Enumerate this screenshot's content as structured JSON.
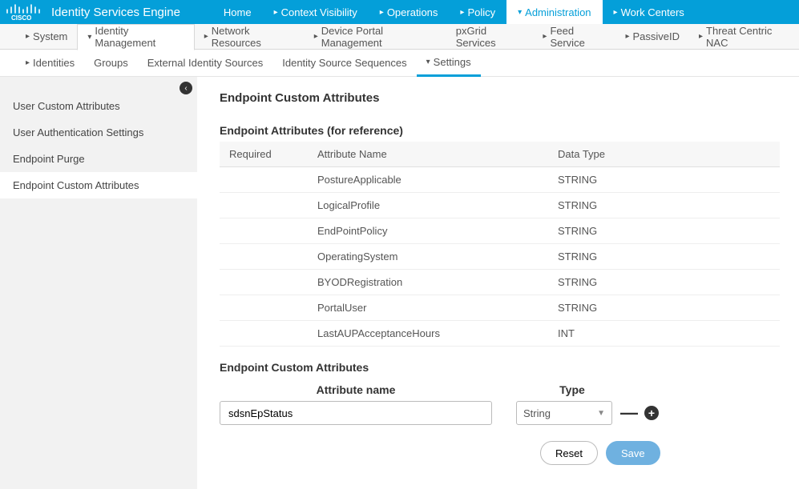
{
  "app_title": "Identity Services Engine",
  "topnav": [
    {
      "label": "Home",
      "caret": false
    },
    {
      "label": "Context Visibility",
      "caret": true
    },
    {
      "label": "Operations",
      "caret": true
    },
    {
      "label": "Policy",
      "caret": true
    },
    {
      "label": "Administration",
      "caret": true,
      "active": true
    },
    {
      "label": "Work Centers",
      "caret": true
    }
  ],
  "subnav1": [
    {
      "label": "System",
      "caret": true
    },
    {
      "label": "Identity Management",
      "caret": true,
      "active": true
    },
    {
      "label": "Network Resources",
      "caret": true
    },
    {
      "label": "Device Portal Management",
      "caret": true
    },
    {
      "label": "pxGrid Services",
      "caret": false
    },
    {
      "label": "Feed Service",
      "caret": true
    },
    {
      "label": "PassiveID",
      "caret": true
    },
    {
      "label": "Threat Centric NAC",
      "caret": true
    }
  ],
  "subnav2": [
    {
      "label": "Identities",
      "caret": true
    },
    {
      "label": "Groups",
      "caret": false
    },
    {
      "label": "External Identity Sources",
      "caret": false
    },
    {
      "label": "Identity Source Sequences",
      "caret": false
    },
    {
      "label": "Settings",
      "caret": true,
      "active": true
    }
  ],
  "side": {
    "items": [
      {
        "label": "User Custom Attributes"
      },
      {
        "label": "User Authentication Settings"
      },
      {
        "label": "Endpoint Purge"
      },
      {
        "label": "Endpoint Custom Attributes",
        "active": true
      }
    ]
  },
  "page": {
    "title": "Endpoint Custom Attributes",
    "ref_section": "Endpoint Attributes (for reference)",
    "ref_headers": {
      "required": "Required",
      "name": "Attribute Name",
      "type": "Data Type"
    },
    "ref_rows": [
      {
        "req": "",
        "name": "PostureApplicable",
        "type": "STRING"
      },
      {
        "req": "",
        "name": "LogicalProfile",
        "type": "STRING"
      },
      {
        "req": "",
        "name": "EndPointPolicy",
        "type": "STRING"
      },
      {
        "req": "",
        "name": "OperatingSystem",
        "type": "STRING"
      },
      {
        "req": "",
        "name": "BYODRegistration",
        "type": "STRING"
      },
      {
        "req": "",
        "name": "PortalUser",
        "type": "STRING"
      },
      {
        "req": "",
        "name": "LastAUPAcceptanceHours",
        "type": "INT"
      }
    ],
    "custom_section": "Endpoint Custom Attributes",
    "custom_headers": {
      "name": "Attribute name",
      "type": "Type"
    },
    "custom_row": {
      "name_value": "sdsnEpStatus",
      "type_value": "String"
    },
    "buttons": {
      "reset": "Reset",
      "save": "Save"
    }
  },
  "colors": {
    "brand": "#049fd9"
  }
}
